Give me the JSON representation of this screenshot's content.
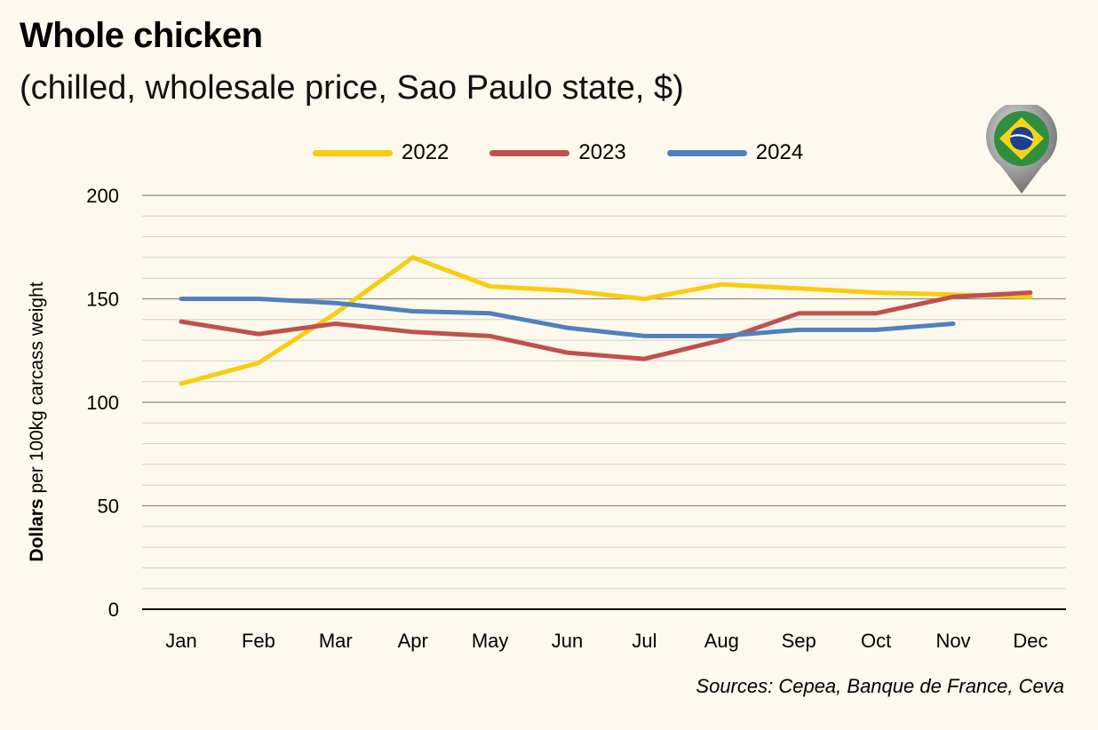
{
  "chart_data": {
    "type": "line",
    "title": "Whole chicken",
    "subtitle": "(chilled, wholesale price, Sao Paulo state, $)",
    "ylabel_bold": "Dollars",
    "ylabel_rest": " per 100kg carcass weight",
    "categories": [
      "Jan",
      "Feb",
      "Mar",
      "Apr",
      "May",
      "Jun",
      "Jul",
      "Aug",
      "Sep",
      "Oct",
      "Nov",
      "Dec"
    ],
    "ylim": [
      0,
      200
    ],
    "yticks": [
      "0",
      "50",
      "100",
      "150",
      "200"
    ],
    "legend_position": "top-center",
    "grid": true,
    "series": [
      {
        "name": "2022",
        "color": "#f9cc0f",
        "values": [
          109,
          119,
          143,
          170,
          156,
          154,
          150,
          157,
          155,
          153,
          152,
          151
        ]
      },
      {
        "name": "2023",
        "color": "#c0504d",
        "values": [
          139,
          133,
          138,
          134,
          132,
          124,
          121,
          130,
          143,
          143,
          151,
          153
        ]
      },
      {
        "name": "2024",
        "color": "#4f81bd",
        "values": [
          150,
          150,
          148,
          144,
          143,
          136,
          132,
          132,
          135,
          135,
          138,
          null
        ]
      }
    ],
    "source": "Sources: Cepea, Banque de France, Ceva"
  },
  "flag_icon": "brazil-flag-pin-icon"
}
